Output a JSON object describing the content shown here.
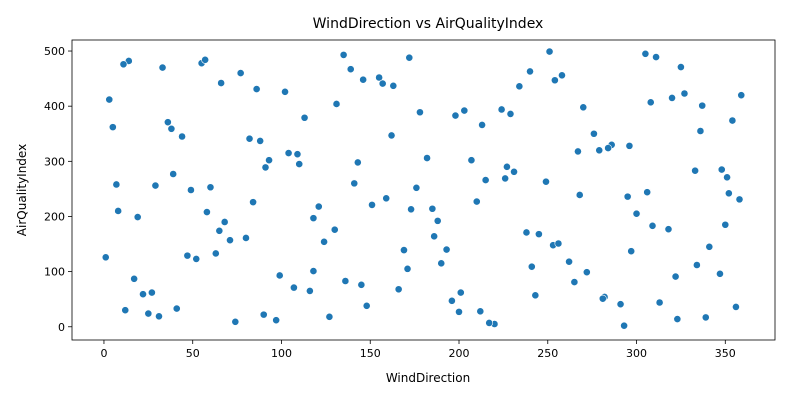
{
  "chart_data": {
    "type": "scatter",
    "title": "WindDirection vs AirQualityIndex",
    "x_label": "WindDirection",
    "y_label": "AirQualityIndex",
    "color": "#1f77b4",
    "xlim": [
      -18,
      378
    ],
    "ylim": [
      -24,
      520
    ],
    "xticks": [
      0,
      50,
      100,
      150,
      200,
      250,
      300,
      350
    ],
    "yticks": [
      0,
      100,
      200,
      300,
      400,
      500
    ],
    "x": [
      3,
      17,
      29,
      41,
      55,
      68,
      82,
      97,
      110,
      124,
      139,
      151,
      166,
      178,
      193,
      207,
      220,
      234,
      249,
      262,
      276,
      291,
      305,
      318,
      333,
      347,
      359,
      8,
      22,
      36,
      49,
      63,
      77,
      90,
      104,
      118,
      131,
      145,
      159,
      172,
      186,
      200,
      213,
      227,
      241,
      254,
      268,
      282,
      296,
      309,
      323,
      337,
      351,
      1,
      14,
      27,
      44,
      58,
      71,
      86,
      99,
      113,
      127,
      141,
      155,
      169,
      182,
      196,
      210,
      224,
      238,
      251,
      265,
      279,
      293,
      306,
      320,
      334,
      348,
      356,
      5,
      19,
      33,
      47,
      60,
      74,
      88,
      102,
      116,
      130,
      143,
      157,
      171,
      185,
      198,
      212,
      226,
      240,
      253,
      267,
      281,
      295,
      308,
      322,
      336,
      350,
      11,
      25,
      39,
      52,
      66,
      80,
      93,
      107,
      121,
      135,
      148,
      162,
      176,
      190,
      203,
      217,
      231,
      245,
      258,
      272,
      286,
      300,
      313,
      327,
      341,
      354,
      7,
      31,
      57,
      84,
      109,
      136,
      163,
      188,
      215,
      243,
      270,
      297,
      325,
      352,
      12,
      38,
      65,
      91,
      118,
      146,
      173,
      201,
      229,
      256,
      284,
      311,
      339,
      358
    ],
    "values": [
      412,
      87,
      256,
      33,
      478,
      190,
      341,
      12,
      295,
      154,
      467,
      221,
      68,
      389,
      140,
      302,
      5,
      436,
      263,
      118,
      350,
      41,
      495,
      177,
      283,
      96,
      420,
      210,
      59,
      371,
      248,
      133,
      460,
      22,
      315,
      197,
      404,
      76,
      233,
      488,
      164,
      27,
      366,
      290,
      109,
      447,
      239,
      54,
      328,
      183,
      14,
      401,
      271,
      126,
      482,
      62,
      345,
      208,
      157,
      431,
      93,
      379,
      18,
      260,
      452,
      139,
      306,
      47,
      227,
      394,
      171,
      499,
      81,
      320,
      2,
      244,
      415,
      112,
      285,
      36,
      362,
      199,
      470,
      129,
      253,
      9,
      337,
      426,
      65,
      176,
      298,
      441,
      105,
      214,
      383,
      28,
      269,
      463,
      148,
      318,
      51,
      236,
      407,
      91,
      355,
      185,
      476,
      24,
      277,
      123,
      442,
      161,
      302,
      71,
      218,
      493,
      38,
      347,
      252,
      115,
      392,
      7,
      281,
      168,
      456,
      99,
      330,
      205,
      44,
      423,
      145,
      374,
      258,
      19,
      484,
      226,
      313,
      83,
      437,
      192,
      266,
      57,
      398,
      137,
      471,
      242,
      30,
      359,
      174,
      289,
      101,
      448,
      213,
      62,
      386,
      151,
      324,
      489,
      17,
      231
    ]
  }
}
